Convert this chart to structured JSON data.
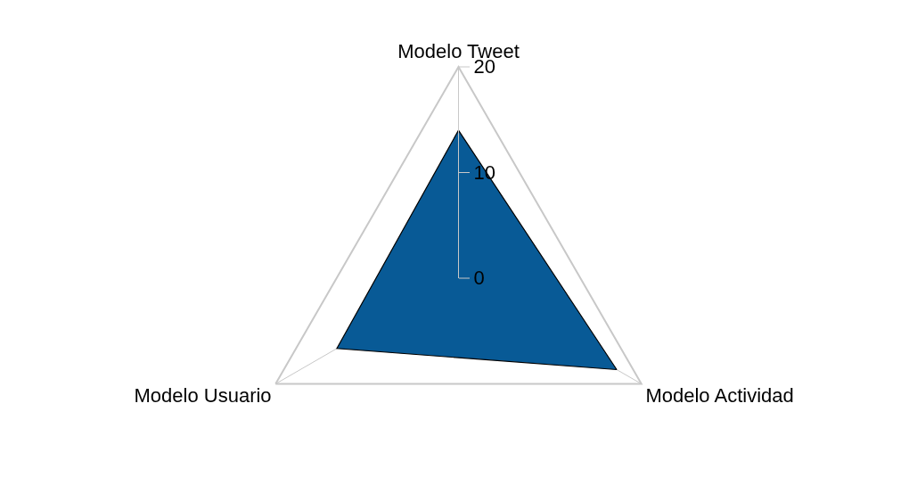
{
  "chart_data": {
    "type": "radar",
    "categories": [
      "Modelo Tweet",
      "Modelo Actividad",
      "Modelo Usuario"
    ],
    "series": [
      {
        "color": "#085a96",
        "values": [
          14,
          17.3,
          13.3
        ]
      }
    ],
    "ylim": [
      0,
      20
    ],
    "yticks": [
      0,
      10,
      20
    ],
    "grid": "x",
    "marker": "none"
  }
}
